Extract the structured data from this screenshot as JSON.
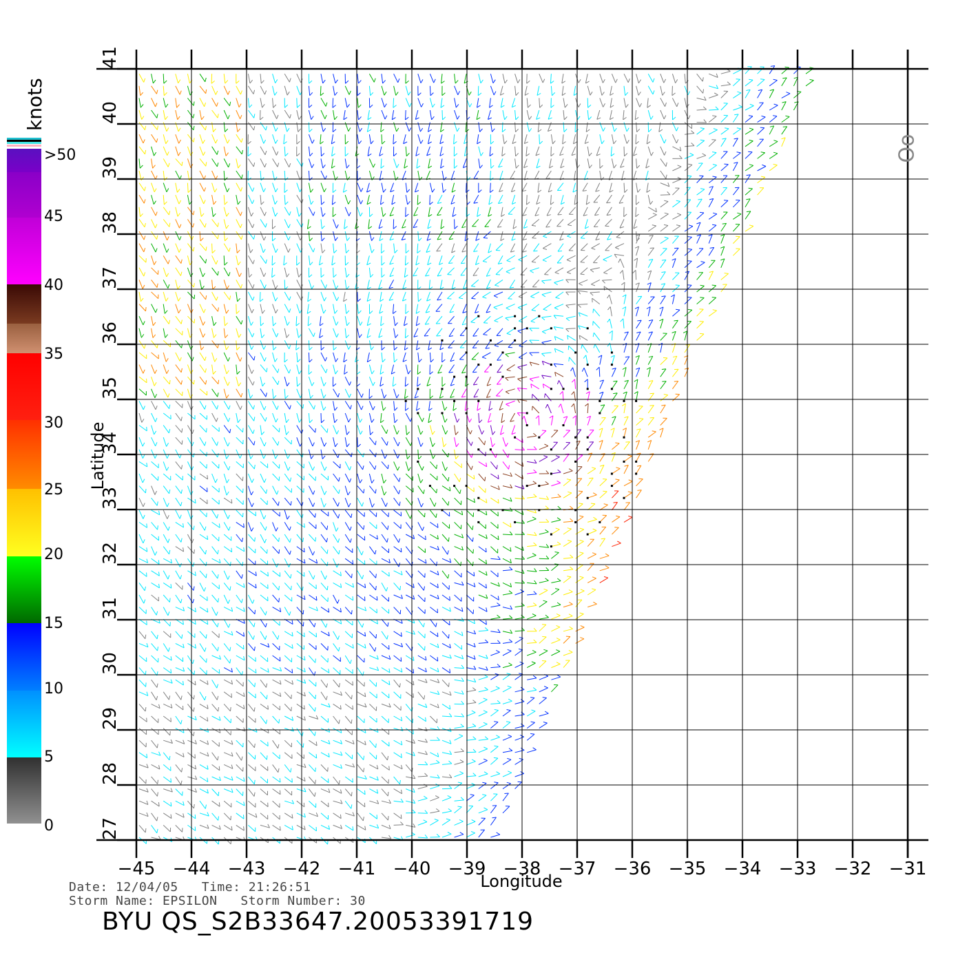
{
  "map": {
    "xlabel": "Longitude",
    "ylabel": "Latitude",
    "lon_ticks": [
      "−45",
      "−44",
      "−43",
      "−42",
      "−41",
      "−40",
      "−39",
      "−38",
      "−37",
      "−36",
      "−35",
      "−34",
      "−33",
      "−32",
      "−31"
    ],
    "lat_ticks": [
      "27",
      "28",
      "29",
      "30",
      "31",
      "32",
      "33",
      "34",
      "35",
      "36",
      "37",
      "38",
      "39",
      "40",
      "41"
    ],
    "lon_range": [
      -45,
      -31
    ],
    "lat_range": [
      27,
      41
    ],
    "swath_edge": {
      "lon_at_lat27": -38.5,
      "lon_at_lat41": -32.7
    },
    "storm_center": {
      "lon": -38.0,
      "lat": 34.5
    },
    "corner_mark": "Oo"
  },
  "legend": {
    "unit": "knots",
    "labels": [
      ">50",
      "45",
      "40",
      "35",
      "30",
      "25",
      "20",
      "15",
      "10",
      "5",
      "0"
    ],
    "colors": {
      "gray": "#808080",
      "cyan": "#00e8ff",
      "blue": "#0030ff",
      "green": "#00b000",
      "yellow": "#ffee00",
      "orange": "#ff8800",
      "red": "#ff2000",
      "brown": "#8b4020",
      "magenta": "#ff00ff",
      "purple": "#6a00c0"
    }
  },
  "info": {
    "date_line": "Date: 12/04/05   Time: 21:26:51",
    "storm_line": "Storm Name: EPSILON   Storm Number: 30",
    "title": "BYU QS_S2B33647.20053391719"
  }
}
